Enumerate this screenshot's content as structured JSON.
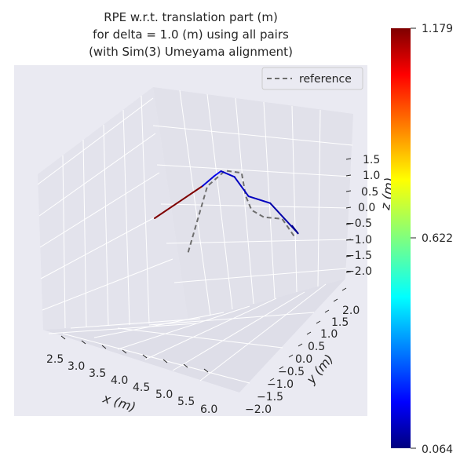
{
  "chart_data": {
    "type": "line",
    "title_lines": [
      "RPE w.r.t. translation part (m)",
      "for delta = 1.0 (m) using all pairs",
      "(with Sim(3) Umeyama alignment)"
    ],
    "xlabel": "x (m)",
    "ylabel": "y (m)",
    "zlabel": "z (m)",
    "xlim": [
      2.2,
      6.2
    ],
    "ylim": [
      -2.2,
      2.4
    ],
    "zlim": [
      -2.2,
      1.7
    ],
    "x_ticks": [
      "2.5",
      "3.0",
      "3.5",
      "4.0",
      "4.5",
      "5.0",
      "5.5",
      "6.0"
    ],
    "y_ticks": [
      "−2.0",
      "−1.5",
      "−1.0",
      "−0.5",
      "0.0",
      "0.5",
      "1.0",
      "1.5",
      "2.0"
    ],
    "z_ticks": [
      "−2.0",
      "−1.5",
      "−1.0",
      "−0.5",
      "0.0",
      "0.5",
      "1.0",
      "1.5"
    ],
    "grid": true,
    "legend": {
      "position": "top-right",
      "entries": [
        "reference"
      ]
    },
    "colorbar": {
      "min": "0.064",
      "mid": "0.622",
      "max": "1.179",
      "colormap": "jet"
    },
    "series": [
      {
        "name": "reference",
        "style": "dashed",
        "color": "#6e6e6e",
        "points": [
          [
            4.0,
            0.0,
            -0.75
          ],
          [
            4.4,
            0.0,
            0.8
          ],
          [
            4.7,
            0.1,
            1.15
          ],
          [
            4.9,
            0.3,
            1.05
          ],
          [
            4.95,
            0.35,
            0.5
          ],
          [
            5.0,
            0.45,
            0.15
          ],
          [
            5.15,
            0.6,
            -0.05
          ],
          [
            5.35,
            0.85,
            -0.15
          ],
          [
            5.5,
            1.0,
            -0.6
          ]
        ]
      },
      {
        "style": "solid",
        "colored_by_error": true,
        "points": [
          [
            3.3,
            0.0,
            0.0
          ],
          [
            4.3,
            0.0,
            0.8
          ],
          [
            4.55,
            0.0,
            1.05
          ],
          [
            4.65,
            0.05,
            1.15
          ],
          [
            4.75,
            0.3,
            0.95
          ],
          [
            4.9,
            0.5,
            0.45
          ],
          [
            5.1,
            0.85,
            0.2
          ],
          [
            5.5,
            1.1,
            -0.55
          ],
          [
            5.45,
            1.0,
            -0.35
          ]
        ],
        "segment_colors": [
          "#7f0000",
          "#0000d8",
          "#0000f0",
          "#0000c8",
          "#0000c0",
          "#0000bf",
          "#0000a8",
          "#00008f"
        ]
      }
    ]
  }
}
